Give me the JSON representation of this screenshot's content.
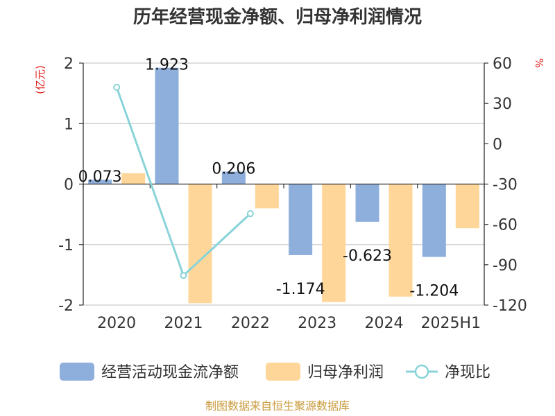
{
  "chart_data": {
    "type": "bar",
    "title": "历年经营现金净额、归母净利润情况",
    "categories": [
      "2020",
      "2021",
      "2022",
      "2023",
      "2024",
      "2025H1"
    ],
    "y_left": {
      "unit": "(亿元)",
      "ylim": [
        -2,
        2
      ],
      "ticks": [
        -2,
        -1,
        0,
        1,
        2
      ]
    },
    "y_right": {
      "unit": "%",
      "ylim": [
        -120,
        60
      ],
      "ticks": [
        -120,
        -90,
        -60,
        -30,
        0,
        30,
        60
      ]
    },
    "series": [
      {
        "name": "经营活动现金流净额",
        "type": "bar",
        "axis": "left",
        "color": "#8eaedb",
        "values": [
          0.073,
          1.923,
          0.206,
          -1.174,
          -0.623,
          -1.204
        ],
        "labels": [
          "0.073",
          "1.923",
          "0.206",
          "-1.174",
          "-0.623",
          "-1.204"
        ]
      },
      {
        "name": "归母净利润",
        "type": "bar",
        "axis": "left",
        "color": "#ffd699",
        "values": [
          0.18,
          -1.97,
          -0.4,
          -1.95,
          -1.86,
          -0.73
        ]
      },
      {
        "name": "净现比",
        "type": "line",
        "axis": "right",
        "color": "#88d3d8",
        "values": [
          42,
          -98,
          -52,
          null,
          null,
          null
        ]
      }
    ],
    "legend_position": "bottom",
    "grid": true
  },
  "source": "制图数据来自恒生聚源数据库"
}
